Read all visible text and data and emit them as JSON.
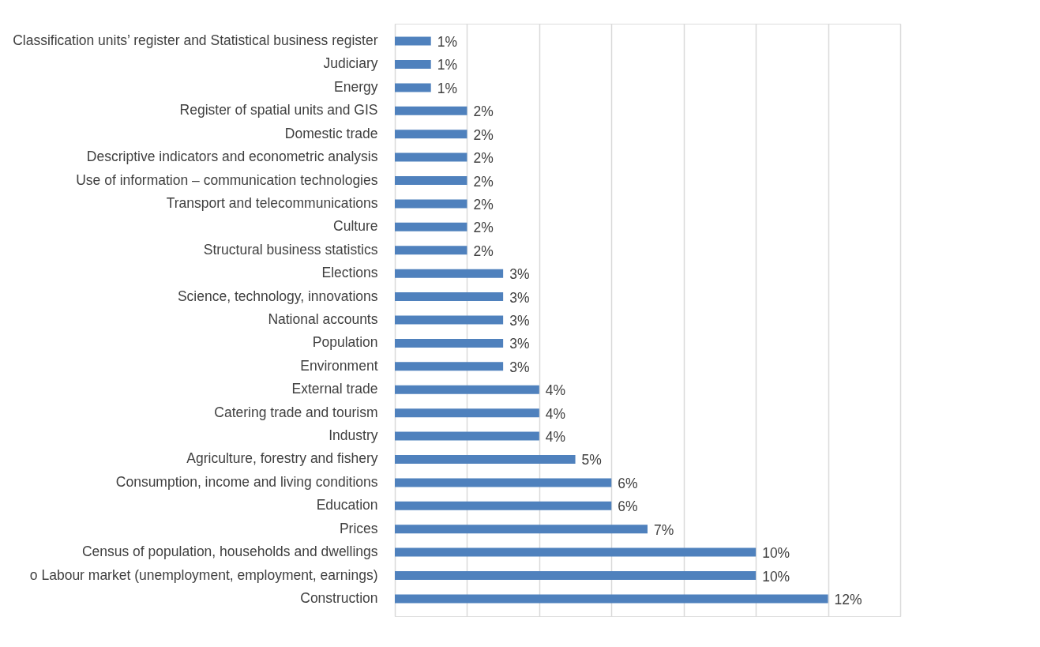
{
  "chart_data": {
    "type": "bar",
    "orientation": "horizontal",
    "categories": [
      "Classification units’ register and Statistical business register",
      "Judiciary",
      "Energy",
      "Register of spatial units and GIS",
      "Domestic trade",
      "Descriptive indicators and econometric analysis ",
      "Use of information – communication technologies",
      "Transport and telecommunications",
      "Culture",
      "Structural business statistics",
      "Elections",
      "Science, technology, innovations",
      "National accounts",
      "Population",
      "Environment",
      "External trade",
      "Catering trade and tourism",
      "Industry",
      "Agriculture, forestry and fishery",
      "Consumption, income and living conditions",
      "Education",
      "Prices",
      "Census of population, households and dwellings",
      "o Labour market (unemployment, employment, earnings)",
      "Construction"
    ],
    "values": [
      1,
      1,
      1,
      2,
      2,
      2,
      2,
      2,
      2,
      2,
      3,
      3,
      3,
      3,
      3,
      4,
      4,
      4,
      5,
      6,
      6,
      7,
      10,
      10,
      12
    ],
    "value_labels": [
      "1%",
      "1%",
      "1%",
      "2%",
      "2%",
      "2%",
      "2%",
      "2%",
      "2%",
      "2%",
      "3%",
      "3%",
      "3%",
      "3%",
      "3%",
      "4%",
      "4%",
      "4%",
      "5%",
      "6%",
      "6%",
      "7%",
      "10%",
      "10%",
      "12%"
    ],
    "color": "#4f81bd",
    "xlim": [
      0,
      14
    ],
    "xticks": [
      {
        "value": 0,
        "label": null
      },
      {
        "value": 2,
        "label": null
      },
      {
        "value": 4,
        "label": null
      },
      {
        "value": 6,
        "label": null
      },
      {
        "value": 8,
        "label": null
      },
      {
        "value": 10,
        "label": null
      },
      {
        "value": 12,
        "label": null
      },
      {
        "value": 14,
        "label": null
      }
    ],
    "tick_labels": "y",
    "grid": "x"
  }
}
